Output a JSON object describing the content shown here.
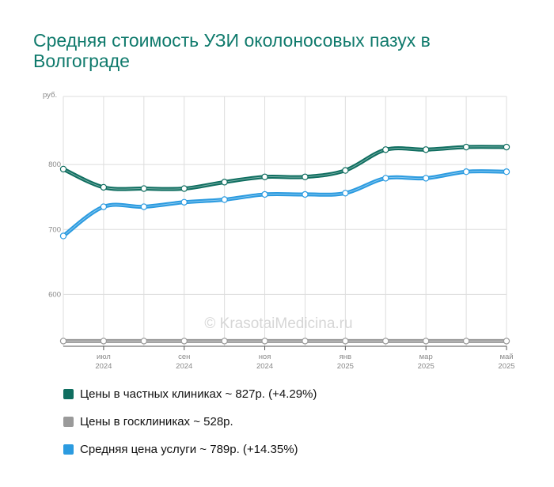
{
  "colors": {
    "private": "#0f6e60",
    "public": "#9a9a9a",
    "average": "#2b9be0",
    "grid": "#dddddd",
    "title": "#0f7a6c"
  },
  "chart_data": {
    "type": "line",
    "title": "Средняя стоимость УЗИ околоносовых пазух в Волгограде",
    "ylabel": "руб.",
    "ylim": [
      520,
      905
    ],
    "yticks": [
      600,
      700,
      800
    ],
    "grid": true,
    "watermark": "© KrasotaiMedicina.ru",
    "x_tick_labels": [
      {
        "month": "июл",
        "year": "2024"
      },
      {
        "month": "сен",
        "year": "2024"
      },
      {
        "month": "ноя",
        "year": "2024"
      },
      {
        "month": "янв",
        "year": "2025"
      },
      {
        "month": "мар",
        "year": "2025"
      },
      {
        "month": "май",
        "year": "2025"
      }
    ],
    "series": [
      {
        "key": "private",
        "values": [
          793,
          765,
          763,
          763,
          773,
          781,
          781,
          791,
          823,
          823,
          827,
          827
        ]
      },
      {
        "key": "public",
        "values": [
          528,
          528,
          528,
          528,
          528,
          528,
          528,
          528,
          528,
          528,
          528,
          528
        ]
      },
      {
        "key": "average",
        "values": [
          690,
          735,
          735,
          742,
          746,
          754,
          754,
          756,
          779,
          779,
          789,
          789
        ]
      }
    ]
  },
  "legend": {
    "private": "Цены в частных клиниках ~ 827р. (+4.29%)",
    "public": "Цены в госклиниках ~ 528р.",
    "average": "Средняя цена услуги ~ 789р. (+14.35%)"
  }
}
